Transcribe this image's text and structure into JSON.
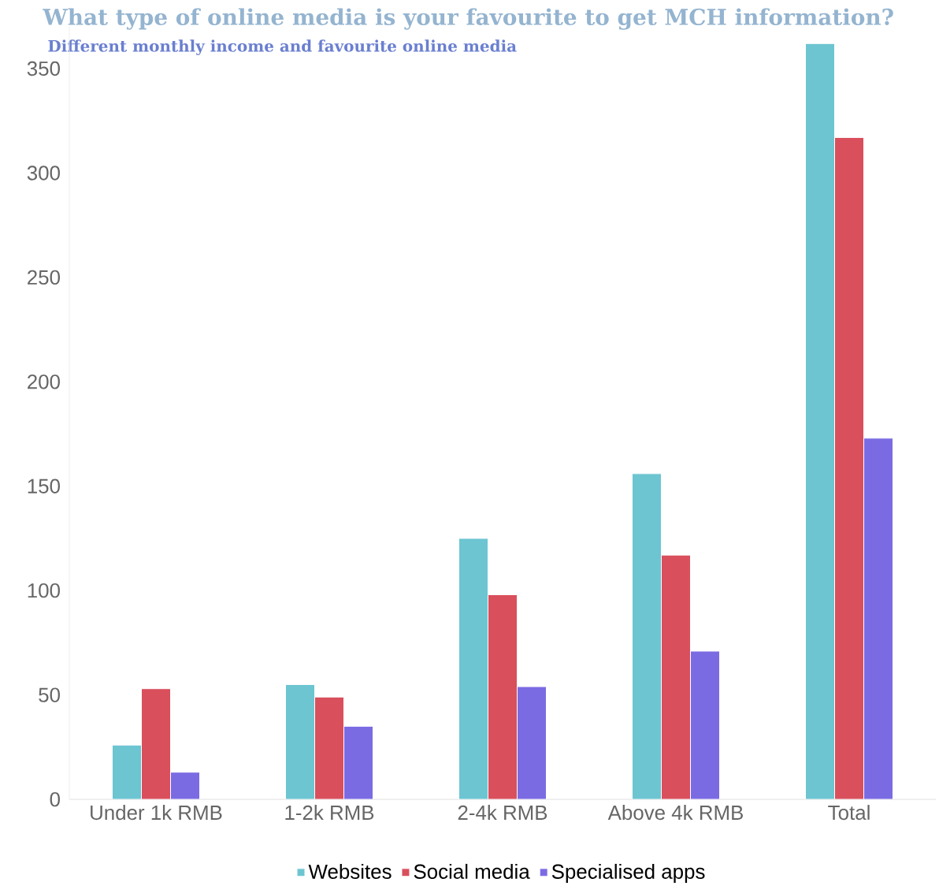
{
  "chart_data": {
    "type": "bar",
    "title": "What type of online media is your favourite to get MCH information?",
    "subtitle": "Different monthly income and favourite online media",
    "categories": [
      "Under 1k RMB",
      "1-2k RMB",
      "2-4k RMB",
      "Above 4k RMB",
      "Total"
    ],
    "series": [
      {
        "name": "Websites",
        "color": "#6cc5d1",
        "values": [
          26,
          55,
          125,
          156,
          362
        ]
      },
      {
        "name": "Social media",
        "color": "#d94f5c",
        "values": [
          53,
          49,
          98,
          117,
          317
        ]
      },
      {
        "name": "Specialised apps",
        "color": "#7b6be3",
        "values": [
          13,
          35,
          54,
          71,
          173
        ]
      }
    ],
    "ylim": [
      0,
      370
    ],
    "yticks": [
      0,
      50,
      100,
      150,
      200,
      250,
      300,
      350
    ],
    "legend": "bottom"
  }
}
